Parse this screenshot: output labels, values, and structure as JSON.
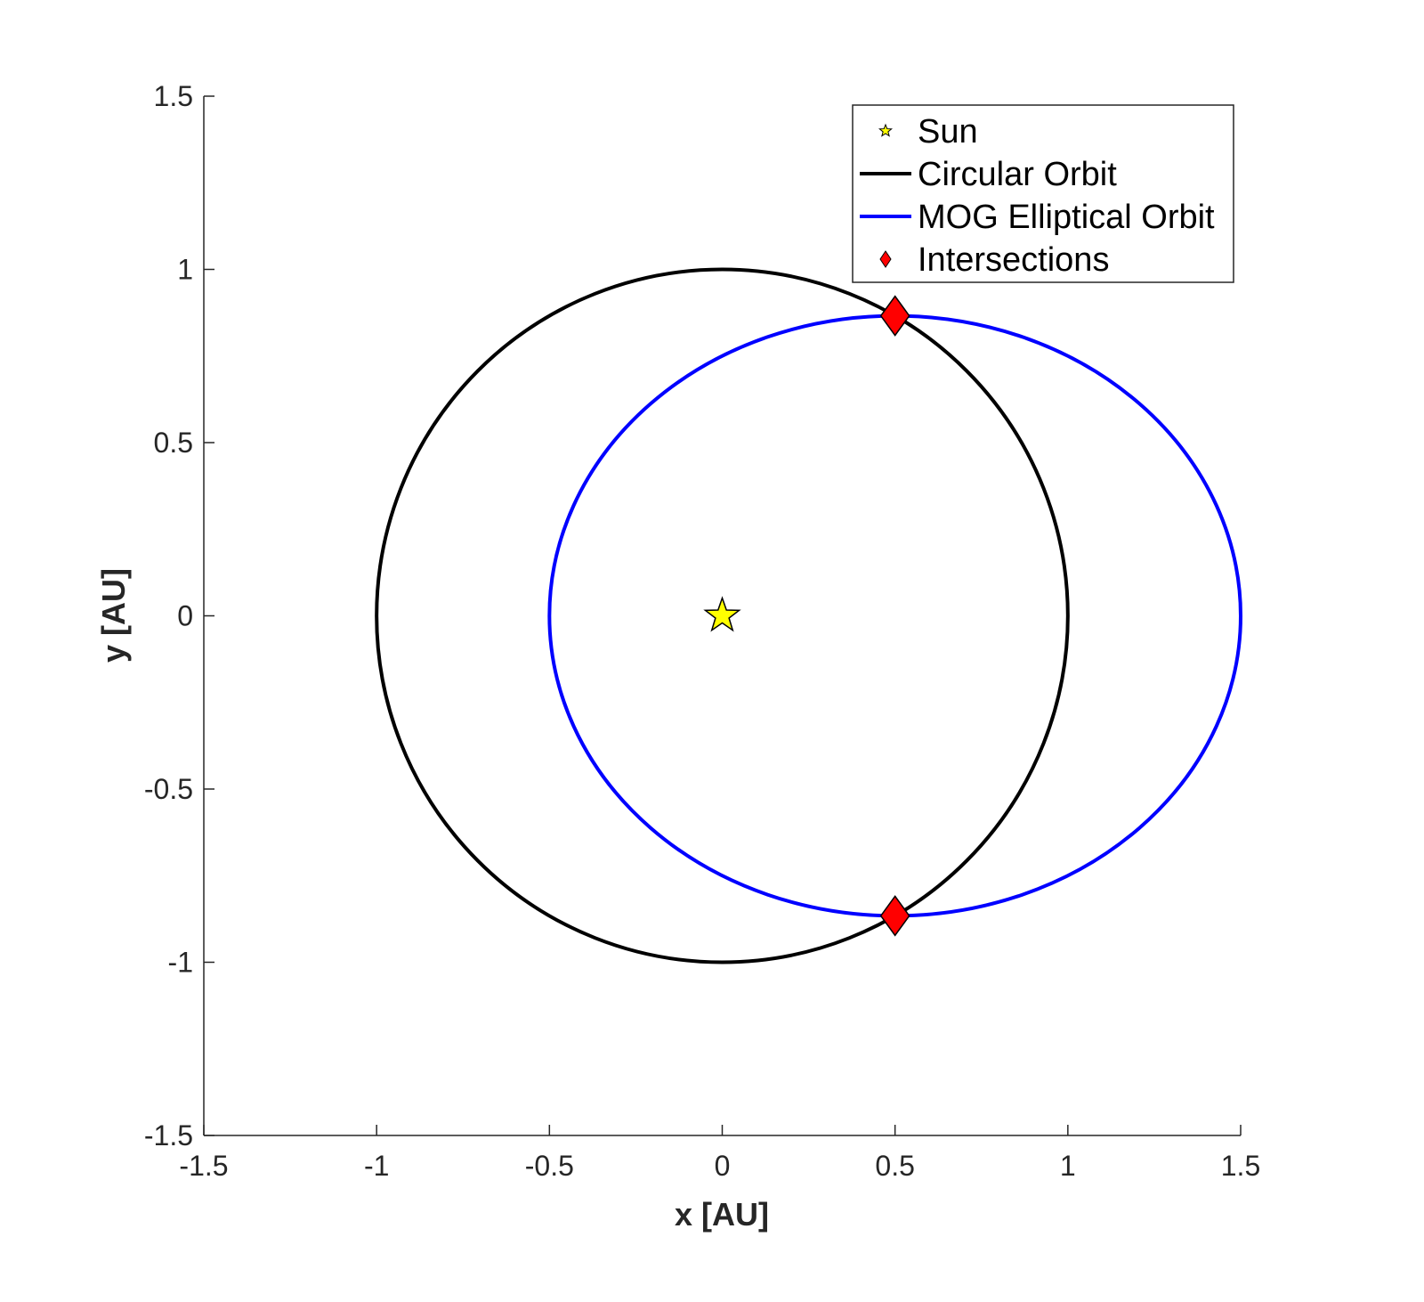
{
  "chart_data": {
    "type": "line",
    "title": "",
    "xlabel": "x [AU]",
    "ylabel": "y [AU]",
    "xlim": [
      -1.5,
      1.5
    ],
    "ylim": [
      -1.5,
      1.5
    ],
    "xticks": [
      -1.5,
      -1,
      -0.5,
      0,
      0.5,
      1,
      1.5
    ],
    "yticks": [
      -1.5,
      -1,
      -0.5,
      0,
      0.5,
      1,
      1.5
    ],
    "xtick_labels": [
      "-1.5",
      "-1",
      "-0.5",
      "0",
      "0.5",
      "1",
      "1.5"
    ],
    "ytick_labels": [
      "-1.5",
      "-1",
      "-0.5",
      "0",
      "0.5",
      "1",
      "1.5"
    ],
    "grid": false,
    "legend_position": "top-right",
    "series": [
      {
        "name": "Sun",
        "kind": "marker",
        "marker": "star",
        "color": "#ffff00",
        "points": [
          [
            0,
            0
          ]
        ]
      },
      {
        "name": "Circular Orbit",
        "kind": "circle",
        "color": "#000000",
        "center": [
          0,
          0
        ],
        "radius": 1
      },
      {
        "name": "MOG Elliptical Orbit",
        "kind": "ellipse",
        "color": "#0000ff",
        "center": [
          0.5,
          0
        ],
        "semi_major_x": 1,
        "semi_minor_y": 0.866
      },
      {
        "name": "Intersections",
        "kind": "marker",
        "marker": "diamond",
        "color": "#ff0000",
        "points": [
          [
            0.5,
            0.866
          ],
          [
            0.5,
            -0.866
          ]
        ]
      }
    ]
  }
}
